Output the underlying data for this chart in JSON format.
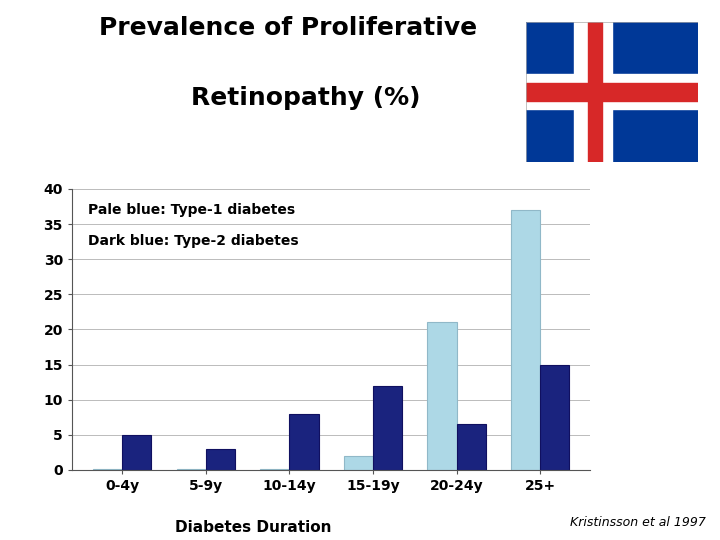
{
  "title_line1": "Prevalence of Proliferative",
  "title_line2": "    Retinopathy (%)",
  "categories": [
    "0-4y",
    "5-9y",
    "10-14y",
    "15-19y",
    "20-24y",
    "25+"
  ],
  "type1_values": [
    0.15,
    0.15,
    0.15,
    2.0,
    21.0,
    37.0
  ],
  "type2_values": [
    5.0,
    3.0,
    8.0,
    12.0,
    6.5,
    15.0
  ],
  "type1_color": "#ADD8E6",
  "type2_color": "#1A237E",
  "type1_edge_color": "#90b8c8",
  "type2_edge_color": "#101060",
  "ylim": [
    0,
    40
  ],
  "yticks": [
    0,
    5,
    10,
    15,
    20,
    25,
    30,
    35,
    40
  ],
  "xlabel": "Diabetes Duration",
  "annotation_line1": "Pale blue: Type-1 diabetes",
  "annotation_line2": "Dark blue: Type-2 diabetes",
  "citation": "Kristinsson et al 1997",
  "background_color": "#ffffff",
  "bar_width": 0.35,
  "title_fontsize": 18,
  "tick_fontsize": 10,
  "label_fontsize": 11,
  "annot_fontsize": 10,
  "citation_fontsize": 9,
  "flag_blue": "#003897",
  "flag_red": "#D72828",
  "flag_white": "#ffffff"
}
